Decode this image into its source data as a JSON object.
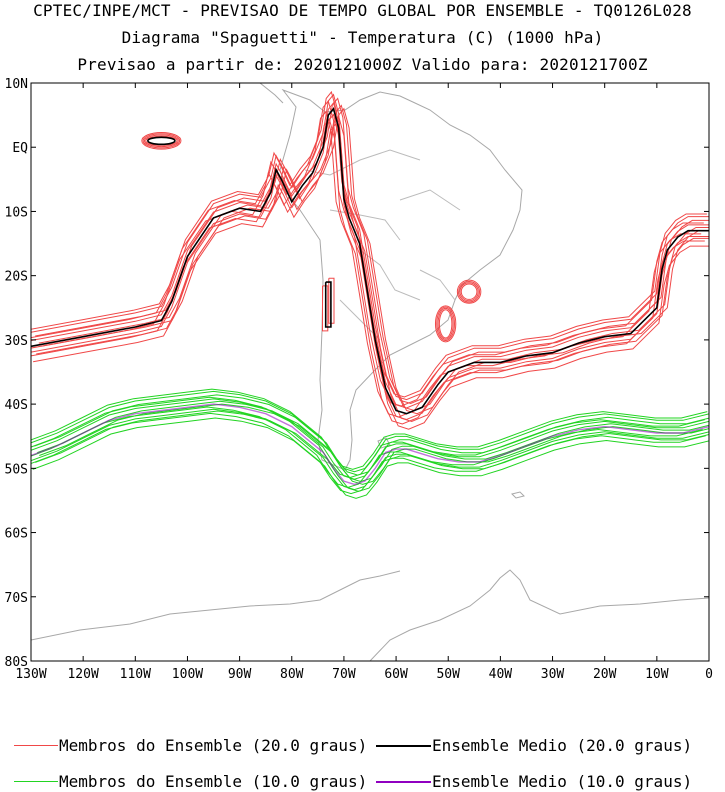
{
  "titles": {
    "line1": "CPTEC/INPE/MCT - PREVISAO DE TEMPO GLOBAL POR ENSEMBLE - TQ0126L028",
    "line2": "Diagrama \"Spaguetti\" - Temperatura (C) (1000 hPa)",
    "line3": "Previsao a partir de: 2020121000Z  Valido para: 2020121700Z"
  },
  "colors": {
    "member_20": "#f04848",
    "mean_20": "#000000",
    "member_10": "#22d422",
    "mean_10": "#9000c0",
    "coast": "#a8a8a8"
  },
  "chart_data": {
    "type": "line",
    "xlim": [
      -130,
      0
    ],
    "ylim": [
      -80,
      10
    ],
    "x_ticks": [
      "130W",
      "120W",
      "110W",
      "100W",
      "90W",
      "80W",
      "70W",
      "60W",
      "50W",
      "40W",
      "30W",
      "20W",
      "10W",
      "0"
    ],
    "y_ticks": [
      "10N",
      "EQ",
      "10S",
      "20S",
      "30S",
      "40S",
      "50S",
      "60S",
      "70S",
      "80S"
    ],
    "legend": [
      {
        "label": "Membros do Ensemble (20.0 graus)",
        "color": "#f04848"
      },
      {
        "label": "Ensemble Medio (20.0 graus)",
        "color": "#000000"
      },
      {
        "label": "Membros do Ensemble (10.0 graus)",
        "color": "#22d422"
      },
      {
        "label": "Ensemble Medio (10.0 graus)",
        "color": "#9000c0"
      }
    ],
    "series": [
      {
        "name": "Ensemble Medio (20.0 graus)",
        "lon": [
          -130,
          -120,
          -110,
          -105,
          -103,
          -100,
          -95,
          -90,
          -86,
          -84,
          -83,
          -82,
          -80,
          -78,
          -76,
          -74,
          -73,
          -72,
          -71,
          -70,
          -69,
          -68,
          -67,
          -66,
          -65,
          -64,
          -62,
          -60,
          -58,
          -55,
          -52,
          -50,
          -45,
          -40,
          -35,
          -30,
          -25,
          -20,
          -15,
          -10,
          -9,
          -8,
          -7,
          -6,
          -4,
          -2,
          0
        ],
        "lat": [
          -31,
          -29.5,
          -28,
          -27,
          -24,
          -17,
          -11,
          -9.5,
          -10,
          -7,
          -3.5,
          -5,
          -8.5,
          -6,
          -4,
          0,
          5,
          6,
          3,
          -8,
          -11,
          -13,
          -15,
          -20,
          -25,
          -30,
          -37.5,
          -41,
          -41.5,
          -40.5,
          -37,
          -35,
          -33.5,
          -33.5,
          -32.5,
          -32,
          -30.5,
          -29.5,
          -29,
          -25,
          -19,
          -16,
          -15,
          -14,
          -13,
          -13,
          -13
        ]
      },
      {
        "name": "Ensemble Medio (20.0 graus) island",
        "lon": [
          -73.5,
          -72.5,
          -72.5,
          -73.5,
          -73.5
        ],
        "lat": [
          -21,
          -21,
          -28,
          -28,
          -21
        ]
      },
      {
        "name": "Ensemble Medio (10.0 graus)",
        "lon": [
          -130,
          -125,
          -120,
          -115,
          -110,
          -105,
          -100,
          -95,
          -90,
          -85,
          -80,
          -77,
          -74,
          -72,
          -70,
          -68,
          -66,
          -64,
          -62,
          -60,
          -58,
          -56,
          -52,
          -48,
          -44,
          -40,
          -35,
          -30,
          -25,
          -20,
          -15,
          -10,
          -5,
          0
        ],
        "lat": [
          -48,
          -46.5,
          -44.5,
          -42.5,
          -41.5,
          -41,
          -40.5,
          -40,
          -40.5,
          -41.5,
          -43.5,
          -45.5,
          -47.5,
          -50,
          -52,
          -52.5,
          -52,
          -50,
          -47.5,
          -47,
          -47,
          -47.5,
          -48.5,
          -49,
          -49,
          -48,
          -46.5,
          -45,
          -44,
          -43.5,
          -44,
          -44.5,
          -44.5,
          -43.5
        ]
      }
    ]
  },
  "legend_labels": {
    "member_20": "Membros do Ensemble (20.0 graus)",
    "mean_20": "Ensemble Medio (20.0 graus)",
    "member_10": "Membros do Ensemble (10.0 graus)",
    "mean_10": "Ensemble Medio (10.0 graus)"
  }
}
